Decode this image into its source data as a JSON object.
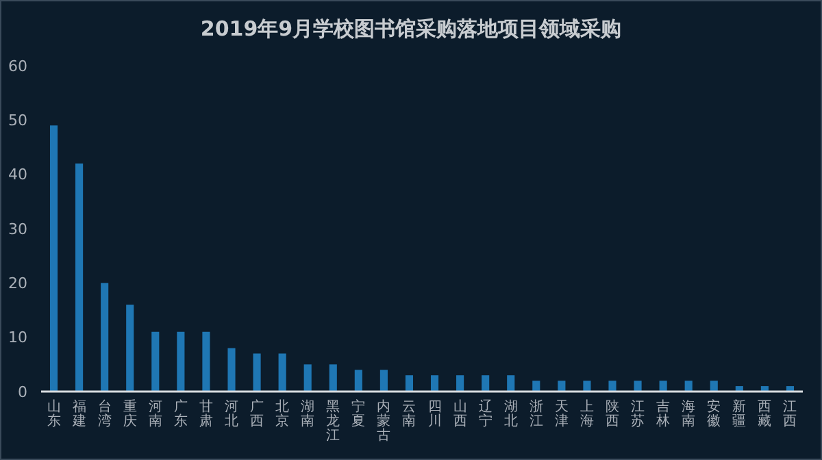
{
  "chart_data": {
    "type": "bar",
    "title": "2019年9月学校图书馆采购落地项目领域采购",
    "categories": [
      "山东",
      "福建",
      "台湾",
      "重庆",
      "河南",
      "广东",
      "甘肃",
      "河北",
      "广西",
      "北京",
      "湖南",
      "黑龙江",
      "宁夏",
      "内蒙古",
      "云南",
      "四川",
      "山西",
      "辽宁",
      "湖北",
      "浙江",
      "天津",
      "上海",
      "陕西",
      "江苏",
      "吉林",
      "海南",
      "安徽",
      "新疆",
      "西藏",
      "江西"
    ],
    "values": [
      49,
      42,
      20,
      16,
      11,
      11,
      11,
      8,
      7,
      7,
      5,
      5,
      4,
      4,
      3,
      3,
      3,
      3,
      3,
      2,
      2,
      2,
      2,
      2,
      2,
      2,
      2,
      1,
      1,
      1
    ],
    "color": "#1f77b4",
    "ylim": [
      0,
      60
    ],
    "yticks": [
      0,
      10,
      20,
      30,
      40,
      50,
      60
    ],
    "grid": false
  }
}
